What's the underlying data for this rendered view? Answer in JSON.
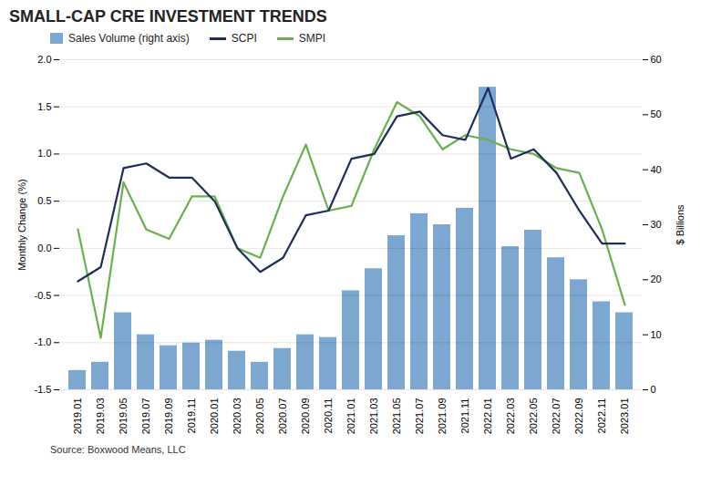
{
  "chart_data": {
    "type": "bar",
    "title": "SMALL-CAP CRE INVESTMENT TRENDS",
    "caption": "Source: Boxwood Means, LLC",
    "categories": [
      "2019.01",
      "2019.03",
      "2019.05",
      "2019.07",
      "2019.09",
      "2019.11",
      "2020.01",
      "2020.03",
      "2020.05",
      "2020.07",
      "2020.09",
      "2020.11",
      "2021.01",
      "2021.03",
      "2021.05",
      "2021.07",
      "2021.09",
      "2021.11",
      "2022.01",
      "2022.03",
      "2022.05",
      "2022.07",
      "2022.09",
      "2022.11",
      "2023.01"
    ],
    "series": [
      {
        "name": "Sales Volume (right axis)",
        "type": "bar",
        "axis": "y2",
        "color": "#7ba7d0",
        "values": [
          3.5,
          5.0,
          14.0,
          10.0,
          8.0,
          8.5,
          9.0,
          7.0,
          5.0,
          7.5,
          10.0,
          9.5,
          18.0,
          22.0,
          28.0,
          32.0,
          30.0,
          33.0,
          55.0,
          26.0,
          29.0,
          24.0,
          20.0,
          16.0,
          14.0
        ]
      },
      {
        "name": "SCPI",
        "type": "line",
        "color": "#1e2d5a",
        "values": [
          -0.35,
          -0.2,
          0.85,
          0.9,
          0.75,
          0.75,
          0.5,
          0.0,
          -0.25,
          -0.1,
          0.35,
          0.4,
          0.95,
          1.0,
          1.4,
          1.45,
          1.2,
          1.15,
          1.7,
          0.95,
          1.05,
          0.8,
          0.4,
          0.05,
          0.05
        ]
      },
      {
        "name": "SMPI",
        "type": "line",
        "color": "#6ab04c",
        "values": [
          0.2,
          -0.95,
          0.7,
          0.2,
          0.1,
          0.55,
          0.55,
          0.0,
          -0.1,
          0.55,
          1.1,
          0.4,
          0.45,
          1.05,
          1.55,
          1.4,
          1.05,
          1.2,
          1.15,
          1.05,
          1.0,
          0.85,
          0.8,
          0.2,
          -0.6
        ]
      }
    ],
    "ylabel": "Monthly Change (%)",
    "y2label": "$ Billions",
    "ylim": [
      -1.5,
      2.0
    ],
    "yticks": [
      -1.5,
      {
        "value": -1,
        "label": "-1.0"
      },
      -0.5,
      {
        "value": 0,
        "label": "0.0"
      },
      0.5,
      {
        "value": 1,
        "label": "1.0"
      },
      1.5,
      {
        "value": 2,
        "label": "2.0"
      }
    ],
    "y2lim": [
      0,
      60
    ],
    "y2ticks": [
      0,
      10,
      20,
      30,
      40,
      50,
      60
    ],
    "grid": true,
    "legend": "top"
  }
}
